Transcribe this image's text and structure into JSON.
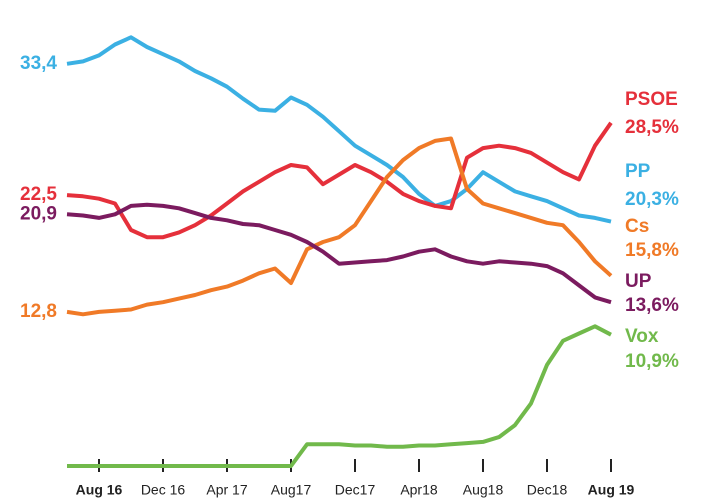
{
  "chart_data": {
    "type": "line",
    "categories": [
      null,
      null,
      "Aug 16",
      null,
      null,
      null,
      "Dec 16",
      null,
      null,
      null,
      "Apr 17",
      null,
      null,
      null,
      "Aug17",
      null,
      null,
      null,
      "Dec17",
      null,
      null,
      null,
      "Apr18",
      null,
      null,
      null,
      "Aug18",
      null,
      null,
      null,
      "Dec18",
      null,
      null,
      null,
      "Aug 19"
    ],
    "ylim": [
      0,
      36
    ],
    "grid": false,
    "series": [
      {
        "name": "PP",
        "color": "#3bb0e3",
        "values": [
          33.4,
          33.6,
          34.1,
          35.0,
          35.6,
          34.8,
          34.2,
          33.6,
          32.8,
          32.2,
          31.5,
          30.5,
          29.6,
          29.5,
          30.6,
          30.0,
          29.0,
          27.8,
          26.6,
          25.8,
          25.0,
          24.0,
          22.6,
          21.6,
          22.0,
          23.0,
          24.4,
          23.6,
          22.8,
          22.4,
          22.0,
          21.4,
          20.8,
          20.6,
          20.3
        ],
        "value_labels": [
          "33,4",
          null,
          null,
          null,
          null,
          null,
          null,
          null,
          null,
          null,
          null,
          null,
          null,
          null,
          null,
          null,
          null,
          null,
          null,
          null,
          null,
          null,
          null,
          null,
          null,
          null,
          null,
          null,
          null,
          null,
          null,
          null,
          null,
          null,
          "20,3%"
        ]
      },
      {
        "name": "PSOE",
        "color": "#e5303b",
        "values": [
          22.5,
          22.4,
          22.2,
          21.8,
          19.6,
          19.0,
          19.0,
          19.4,
          20.0,
          20.8,
          21.8,
          22.8,
          23.6,
          24.4,
          25.0,
          24.8,
          23.4,
          24.2,
          25.0,
          24.4,
          23.6,
          22.6,
          22.0,
          21.6,
          21.4,
          25.6,
          26.4,
          26.6,
          26.4,
          26.0,
          25.2,
          24.4,
          23.8,
          26.6,
          28.5
        ],
        "value_labels": [
          "22,5",
          null,
          null,
          null,
          null,
          null,
          null,
          null,
          null,
          null,
          null,
          null,
          null,
          null,
          null,
          null,
          null,
          null,
          null,
          null,
          null,
          null,
          null,
          null,
          null,
          null,
          null,
          null,
          null,
          null,
          null,
          null,
          null,
          null,
          "28,5%"
        ]
      },
      {
        "name": "Cs",
        "color": "#f07a27",
        "values": [
          12.8,
          12.6,
          12.8,
          12.9,
          13.0,
          13.4,
          13.6,
          13.9,
          14.2,
          14.6,
          14.9,
          15.4,
          16.0,
          16.4,
          15.2,
          18.0,
          18.6,
          19.0,
          20.0,
          22.0,
          24.0,
          25.4,
          26.4,
          27.0,
          27.2,
          23.0,
          21.8,
          21.4,
          21.0,
          20.6,
          20.2,
          20.0,
          18.6,
          17.0,
          15.8
        ],
        "value_labels": [
          "12,8",
          null,
          null,
          null,
          null,
          null,
          null,
          null,
          null,
          null,
          null,
          null,
          null,
          null,
          null,
          null,
          null,
          null,
          null,
          null,
          null,
          null,
          null,
          null,
          null,
          null,
          null,
          null,
          null,
          null,
          null,
          null,
          null,
          null,
          "15,8%"
        ]
      },
      {
        "name": "UP",
        "color": "#7b1b5f",
        "values": [
          20.9,
          20.8,
          20.6,
          20.9,
          21.6,
          21.7,
          21.6,
          21.4,
          21.0,
          20.6,
          20.4,
          20.1,
          20.0,
          19.6,
          19.2,
          18.6,
          17.8,
          16.8,
          16.9,
          17.0,
          17.1,
          17.4,
          17.8,
          18.0,
          17.4,
          17.0,
          16.8,
          17.0,
          16.9,
          16.8,
          16.6,
          16.0,
          15.0,
          14.0,
          13.6
        ],
        "value_labels": [
          "20,9",
          null,
          null,
          null,
          null,
          null,
          null,
          null,
          null,
          null,
          null,
          null,
          null,
          null,
          null,
          null,
          null,
          null,
          null,
          null,
          null,
          null,
          null,
          null,
          null,
          null,
          null,
          null,
          null,
          null,
          null,
          null,
          null,
          null,
          "13,6%"
        ]
      },
      {
        "name": "Vox",
        "color": "#71b94b",
        "values": [
          0,
          0,
          0,
          0,
          0,
          0,
          0,
          0,
          0,
          0,
          0,
          0,
          0,
          0,
          0,
          1.8,
          1.8,
          1.8,
          1.7,
          1.7,
          1.6,
          1.6,
          1.7,
          1.7,
          1.8,
          1.9,
          2.0,
          2.4,
          3.4,
          5.2,
          8.4,
          10.4,
          11.0,
          11.6,
          10.9
        ],
        "value_labels": [
          null,
          null,
          null,
          null,
          null,
          null,
          null,
          null,
          null,
          null,
          null,
          null,
          null,
          null,
          null,
          null,
          null,
          null,
          null,
          null,
          null,
          null,
          null,
          null,
          null,
          null,
          null,
          null,
          null,
          null,
          null,
          null,
          null,
          null,
          "10,9%"
        ]
      }
    ]
  }
}
